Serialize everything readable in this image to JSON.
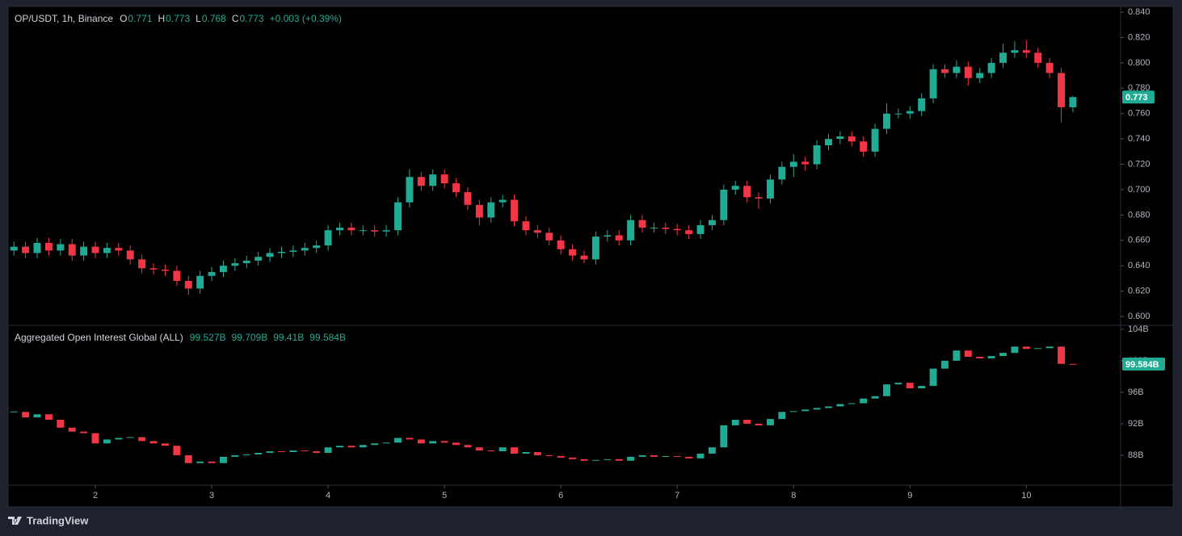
{
  "chart_data": [
    {
      "type": "candlestick",
      "title": "OP/USDT, 1h, Binance",
      "legend_values": [
        {
          "key": "O",
          "value": "0.771"
        },
        {
          "key": "H",
          "value": "0.773"
        },
        {
          "key": "L",
          "value": "0.768"
        },
        {
          "key": "C",
          "value": "0.773"
        }
      ],
      "change": "+0.003 (+0.39%)",
      "up_color": "#22ab94",
      "down_color": "#f23645",
      "x": [
        1.3,
        1.4,
        1.5,
        1.6,
        1.7,
        1.8,
        1.9,
        2.0,
        2.1,
        2.2,
        2.3,
        2.4,
        2.5,
        2.6,
        2.7,
        2.8,
        2.9,
        3.0,
        3.1,
        3.2,
        3.3,
        3.4,
        3.5,
        3.6,
        3.7,
        3.8,
        3.9,
        4.0,
        4.1,
        4.2,
        4.3,
        4.4,
        4.5,
        4.6,
        4.7,
        4.8,
        4.9,
        5.0,
        5.1,
        5.2,
        5.3,
        5.4,
        5.5,
        5.6,
        5.7,
        5.8,
        5.9,
        6.0,
        6.1,
        6.2,
        6.3,
        6.4,
        6.5,
        6.6,
        6.7,
        6.8,
        6.9,
        7.0,
        7.1,
        7.2,
        7.3,
        7.4,
        7.5,
        7.6,
        7.7,
        7.8,
        7.9,
        8.0,
        8.1,
        8.2,
        8.3,
        8.4,
        8.5,
        8.6,
        8.7,
        8.8,
        8.9,
        9.0,
        9.1,
        9.2,
        9.3,
        9.4,
        9.5,
        9.6,
        9.7,
        9.8,
        9.9,
        10.0,
        10.1,
        10.2,
        10.3,
        10.4
      ],
      "open": [
        0.652,
        0.655,
        0.65,
        0.658,
        0.652,
        0.657,
        0.648,
        0.655,
        0.65,
        0.654,
        0.652,
        0.645,
        0.638,
        0.637,
        0.636,
        0.628,
        0.622,
        0.632,
        0.635,
        0.64,
        0.642,
        0.644,
        0.647,
        0.65,
        0.651,
        0.652,
        0.654,
        0.656,
        0.668,
        0.67,
        0.668,
        0.668,
        0.667,
        0.668,
        0.69,
        0.71,
        0.703,
        0.712,
        0.705,
        0.698,
        0.688,
        0.678,
        0.69,
        0.692,
        0.675,
        0.668,
        0.666,
        0.66,
        0.653,
        0.648,
        0.645,
        0.663,
        0.664,
        0.66,
        0.676,
        0.67,
        0.67,
        0.669,
        0.668,
        0.665,
        0.672,
        0.676,
        0.7,
        0.703,
        0.694,
        0.693,
        0.708,
        0.718,
        0.722,
        0.72,
        0.735,
        0.74,
        0.742,
        0.738,
        0.73,
        0.748,
        0.76,
        0.76,
        0.762,
        0.772,
        0.795,
        0.792,
        0.797,
        0.788,
        0.792,
        0.8,
        0.808,
        0.81,
        0.808,
        0.8,
        0.792,
        0.765
      ],
      "high": [
        0.659,
        0.659,
        0.662,
        0.662,
        0.661,
        0.661,
        0.659,
        0.659,
        0.658,
        0.658,
        0.656,
        0.649,
        0.642,
        0.641,
        0.64,
        0.632,
        0.636,
        0.639,
        0.644,
        0.646,
        0.648,
        0.651,
        0.654,
        0.655,
        0.656,
        0.658,
        0.66,
        0.672,
        0.674,
        0.674,
        0.672,
        0.672,
        0.672,
        0.694,
        0.716,
        0.714,
        0.716,
        0.716,
        0.709,
        0.702,
        0.692,
        0.694,
        0.696,
        0.696,
        0.679,
        0.672,
        0.67,
        0.664,
        0.657,
        0.652,
        0.667,
        0.668,
        0.668,
        0.68,
        0.68,
        0.674,
        0.674,
        0.673,
        0.672,
        0.676,
        0.68,
        0.704,
        0.707,
        0.707,
        0.698,
        0.712,
        0.722,
        0.728,
        0.726,
        0.739,
        0.744,
        0.746,
        0.746,
        0.742,
        0.752,
        0.768,
        0.764,
        0.766,
        0.776,
        0.799,
        0.799,
        0.802,
        0.801,
        0.796,
        0.804,
        0.815,
        0.817,
        0.818,
        0.812,
        0.804,
        0.796,
        0.774
      ],
      "low": [
        0.648,
        0.646,
        0.646,
        0.648,
        0.648,
        0.644,
        0.644,
        0.646,
        0.646,
        0.648,
        0.641,
        0.634,
        0.633,
        0.632,
        0.624,
        0.617,
        0.618,
        0.628,
        0.631,
        0.636,
        0.638,
        0.64,
        0.643,
        0.646,
        0.647,
        0.648,
        0.65,
        0.652,
        0.664,
        0.664,
        0.664,
        0.663,
        0.663,
        0.664,
        0.686,
        0.699,
        0.699,
        0.701,
        0.694,
        0.684,
        0.672,
        0.674,
        0.686,
        0.671,
        0.664,
        0.662,
        0.656,
        0.649,
        0.644,
        0.642,
        0.641,
        0.659,
        0.656,
        0.656,
        0.666,
        0.666,
        0.665,
        0.664,
        0.661,
        0.661,
        0.668,
        0.672,
        0.696,
        0.69,
        0.685,
        0.689,
        0.704,
        0.71,
        0.715,
        0.716,
        0.731,
        0.736,
        0.734,
        0.726,
        0.726,
        0.744,
        0.756,
        0.756,
        0.758,
        0.768,
        0.788,
        0.788,
        0.782,
        0.784,
        0.788,
        0.796,
        0.804,
        0.804,
        0.796,
        0.788,
        0.753,
        0.761
      ],
      "close": [
        0.655,
        0.65,
        0.658,
        0.652,
        0.657,
        0.648,
        0.655,
        0.65,
        0.654,
        0.652,
        0.645,
        0.638,
        0.637,
        0.636,
        0.628,
        0.622,
        0.632,
        0.635,
        0.64,
        0.642,
        0.644,
        0.647,
        0.65,
        0.651,
        0.652,
        0.654,
        0.656,
        0.668,
        0.67,
        0.668,
        0.668,
        0.667,
        0.668,
        0.69,
        0.71,
        0.703,
        0.712,
        0.705,
        0.698,
        0.688,
        0.678,
        0.69,
        0.692,
        0.675,
        0.668,
        0.666,
        0.66,
        0.653,
        0.648,
        0.645,
        0.663,
        0.664,
        0.66,
        0.676,
        0.67,
        0.67,
        0.669,
        0.668,
        0.665,
        0.672,
        0.676,
        0.7,
        0.703,
        0.694,
        0.693,
        0.708,
        0.718,
        0.722,
        0.72,
        0.735,
        0.74,
        0.742,
        0.738,
        0.73,
        0.748,
        0.76,
        0.76,
        0.762,
        0.772,
        0.795,
        0.792,
        0.797,
        0.788,
        0.792,
        0.8,
        0.808,
        0.81,
        0.808,
        0.8,
        0.792,
        0.765,
        0.773
      ],
      "xlim": [
        1.25,
        10.81
      ],
      "ylim": [
        0.593,
        0.8445
      ],
      "yticks": [
        {
          "value": 0.6,
          "label": "0.600"
        },
        {
          "value": 0.62,
          "label": "0.620"
        },
        {
          "value": 0.64,
          "label": "0.640"
        },
        {
          "value": 0.66,
          "label": "0.660"
        },
        {
          "value": 0.68,
          "label": "0.680"
        },
        {
          "value": 0.7,
          "label": "0.700"
        },
        {
          "value": 0.72,
          "label": "0.720"
        },
        {
          "value": 0.74,
          "label": "0.740"
        },
        {
          "value": 0.76,
          "label": "0.760"
        },
        {
          "value": 0.78,
          "label": "0.780"
        },
        {
          "value": 0.8,
          "label": "0.800"
        },
        {
          "value": 0.82,
          "label": "0.820"
        },
        {
          "value": 0.84,
          "label": "0.840"
        }
      ],
      "grid": false
    },
    {
      "type": "candlestick",
      "title": "Aggregated Open Interest Global (ALL)",
      "legend_values": [
        "99.527B",
        "99.709B",
        "99.41B",
        "99.584B"
      ],
      "badge": "99.584B",
      "up_color": "#22ab94",
      "down_color": "#f23645",
      "x": [
        1.3,
        1.4,
        1.5,
        1.6,
        1.7,
        1.8,
        1.9,
        2.0,
        2.1,
        2.2,
        2.3,
        2.4,
        2.5,
        2.6,
        2.7,
        2.8,
        2.9,
        3.0,
        3.1,
        3.2,
        3.3,
        3.4,
        3.5,
        3.6,
        3.7,
        3.8,
        3.9,
        4.0,
        4.1,
        4.2,
        4.3,
        4.4,
        4.5,
        4.6,
        4.7,
        4.8,
        4.9,
        5.0,
        5.1,
        5.2,
        5.3,
        5.4,
        5.5,
        5.6,
        5.7,
        5.8,
        5.9,
        6.0,
        6.1,
        6.2,
        6.3,
        6.4,
        6.5,
        6.6,
        6.7,
        6.8,
        6.9,
        7.0,
        7.1,
        7.2,
        7.3,
        7.4,
        7.5,
        7.6,
        7.7,
        7.8,
        7.9,
        8.0,
        8.1,
        8.2,
        8.3,
        8.4,
        8.5,
        8.6,
        8.7,
        8.8,
        8.9,
        9.0,
        9.1,
        9.2,
        9.3,
        9.4,
        9.5,
        9.6,
        9.7,
        9.8,
        9.9,
        10.0,
        10.1,
        10.2,
        10.3,
        10.4
      ],
      "close": [
        93.5,
        92.8,
        93.2,
        92.5,
        91.5,
        91.0,
        90.8,
        89.5,
        90.0,
        90.2,
        90.3,
        89.8,
        89.5,
        89.2,
        88.0,
        87.0,
        87.2,
        87.0,
        87.8,
        88.0,
        88.1,
        88.3,
        88.5,
        88.4,
        88.6,
        88.5,
        88.3,
        89.0,
        89.2,
        89.0,
        89.3,
        89.5,
        89.6,
        90.2,
        90.0,
        89.5,
        89.8,
        89.6,
        89.3,
        89.0,
        88.6,
        88.5,
        89.0,
        88.2,
        88.4,
        88.0,
        87.9,
        87.7,
        87.5,
        87.3,
        87.4,
        87.5,
        87.3,
        87.8,
        88.0,
        87.8,
        87.9,
        87.8,
        87.6,
        88.2,
        89.0,
        91.8,
        92.5,
        92.0,
        91.8,
        92.6,
        93.5,
        93.6,
        93.8,
        94.0,
        94.2,
        94.5,
        94.6,
        95.2,
        95.5,
        97.0,
        97.2,
        96.5,
        96.8,
        99.0,
        100.0,
        101.3,
        100.5,
        100.3,
        100.6,
        101.0,
        101.8,
        101.5,
        101.6,
        101.8,
        99.6,
        99.584
      ],
      "xlim": [
        1.25,
        10.81
      ],
      "ylim": [
        84.2,
        104.5
      ],
      "yticks": [
        {
          "value": 88,
          "label": "88B"
        },
        {
          "value": 92,
          "label": "92B"
        },
        {
          "value": 96,
          "label": "96B"
        },
        {
          "value": 100,
          "label": "100B"
        },
        {
          "value": 104,
          "label": "104B"
        }
      ],
      "xticks": [
        2,
        3,
        4,
        5,
        6,
        7,
        8,
        9,
        10
      ],
      "grid": false
    }
  ],
  "footer": {
    "brand": "TradingView"
  }
}
